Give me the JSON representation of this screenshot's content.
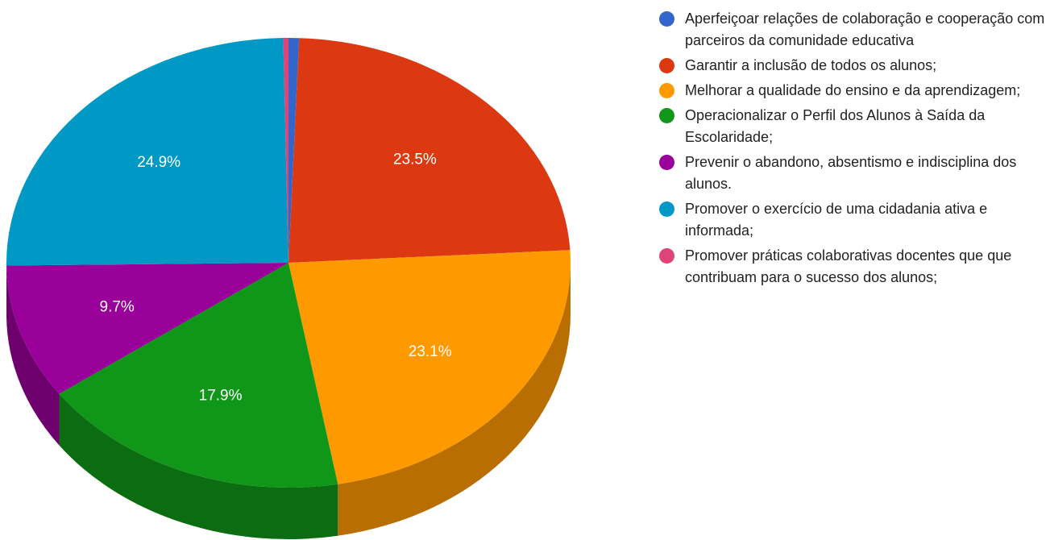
{
  "chart_data": {
    "type": "pie",
    "is3D": true,
    "categories": [
      "Aperfeiçoar relações de colaboração e cooperação com parceiros da comunidade educativa",
      "Garantir a inclusão de todos os alunos;",
      "Melhorar a qualidade do ensino e da aprendizagem;",
      "Operacionalizar o Perfil dos Alunos à Saída da Escolaridade;",
      "Prevenir o abandono, absentismo e indisciplina dos alunos.",
      "Promover o exercício de uma cidadania ativa e informada;",
      "Promover práticas colaborativas docentes que que contribuam para o sucesso dos alunos;"
    ],
    "values": [
      0.6,
      23.5,
      23.1,
      17.9,
      9.7,
      24.9,
      0.3
    ],
    "value_labels": [
      null,
      "23.5%",
      "23.1%",
      "17.9%",
      "9.7%",
      "24.9%",
      null
    ],
    "colors": [
      "#3366cc",
      "#dc3912",
      "#ff9900",
      "#109618",
      "#990099",
      "#0099c6",
      "#dd4477"
    ],
    "legend": "right"
  }
}
